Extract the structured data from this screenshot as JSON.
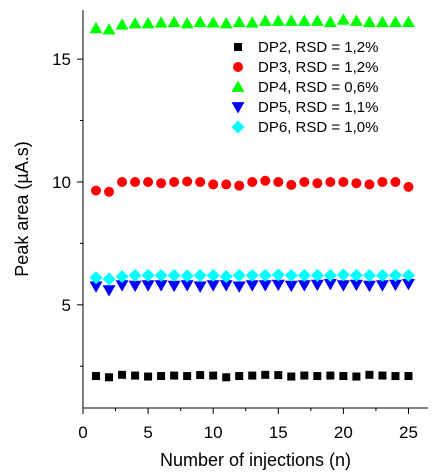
{
  "chart_data": {
    "type": "scatter",
    "xlabel": "Number of injections (n)",
    "ylabel": "Peak area (µA.s)",
    "xlim": [
      0,
      26.5
    ],
    "ylim": [
      0.8,
      17
    ],
    "x_ticks": [
      0,
      5,
      10,
      15,
      20,
      25
    ],
    "y_ticks": [
      5,
      10,
      15
    ],
    "grid": false,
    "legend": "top-right",
    "x": [
      1,
      2,
      3,
      4,
      5,
      6,
      7,
      8,
      9,
      10,
      11,
      12,
      13,
      14,
      15,
      16,
      17,
      18,
      19,
      20,
      21,
      22,
      23,
      24,
      25
    ],
    "series": [
      {
        "name": "DP2, RSD = 1,2%",
        "marker": "square",
        "color": "#000000",
        "values": [
          2.1,
          2.05,
          2.15,
          2.12,
          2.08,
          2.1,
          2.12,
          2.1,
          2.14,
          2.12,
          2.05,
          2.1,
          2.12,
          2.15,
          2.14,
          2.08,
          2.12,
          2.1,
          2.12,
          2.1,
          2.08,
          2.15,
          2.12,
          2.1,
          2.1
        ]
      },
      {
        "name": "DP3, RSD = 1,2%",
        "marker": "circle",
        "color": "#ff0000",
        "values": [
          9.65,
          9.6,
          10.0,
          10.0,
          10.0,
          9.95,
          10.0,
          10.02,
          10.0,
          9.9,
          9.9,
          9.85,
          10.0,
          10.05,
          10.0,
          9.88,
          10.0,
          9.95,
          10.0,
          10.0,
          9.95,
          9.9,
          10.0,
          10.0,
          9.8
        ]
      },
      {
        "name": "DP4, RSD = 0,6%",
        "marker": "triangle-up",
        "color": "#00ff00",
        "values": [
          16.25,
          16.2,
          16.4,
          16.45,
          16.45,
          16.48,
          16.5,
          16.45,
          16.5,
          16.48,
          16.45,
          16.5,
          16.48,
          16.55,
          16.55,
          16.55,
          16.55,
          16.55,
          16.5,
          16.6,
          16.55,
          16.5,
          16.5,
          16.5,
          16.5
        ]
      },
      {
        "name": "DP5, RSD = 1,1%",
        "marker": "triangle-down",
        "color": "#0000ff",
        "values": [
          5.75,
          5.6,
          5.8,
          5.78,
          5.8,
          5.8,
          5.78,
          5.8,
          5.75,
          5.8,
          5.8,
          5.75,
          5.8,
          5.8,
          5.82,
          5.78,
          5.8,
          5.82,
          5.85,
          5.8,
          5.82,
          5.78,
          5.8,
          5.82,
          5.85
        ]
      },
      {
        "name": "DP6, RSD = 1,0%",
        "marker": "diamond",
        "color": "#00ffff",
        "values": [
          6.1,
          6.05,
          6.15,
          6.2,
          6.2,
          6.2,
          6.2,
          6.18,
          6.2,
          6.2,
          6.15,
          6.2,
          6.2,
          6.2,
          6.22,
          6.2,
          6.2,
          6.2,
          6.2,
          6.22,
          6.2,
          6.2,
          6.2,
          6.2,
          6.2
        ]
      }
    ]
  }
}
